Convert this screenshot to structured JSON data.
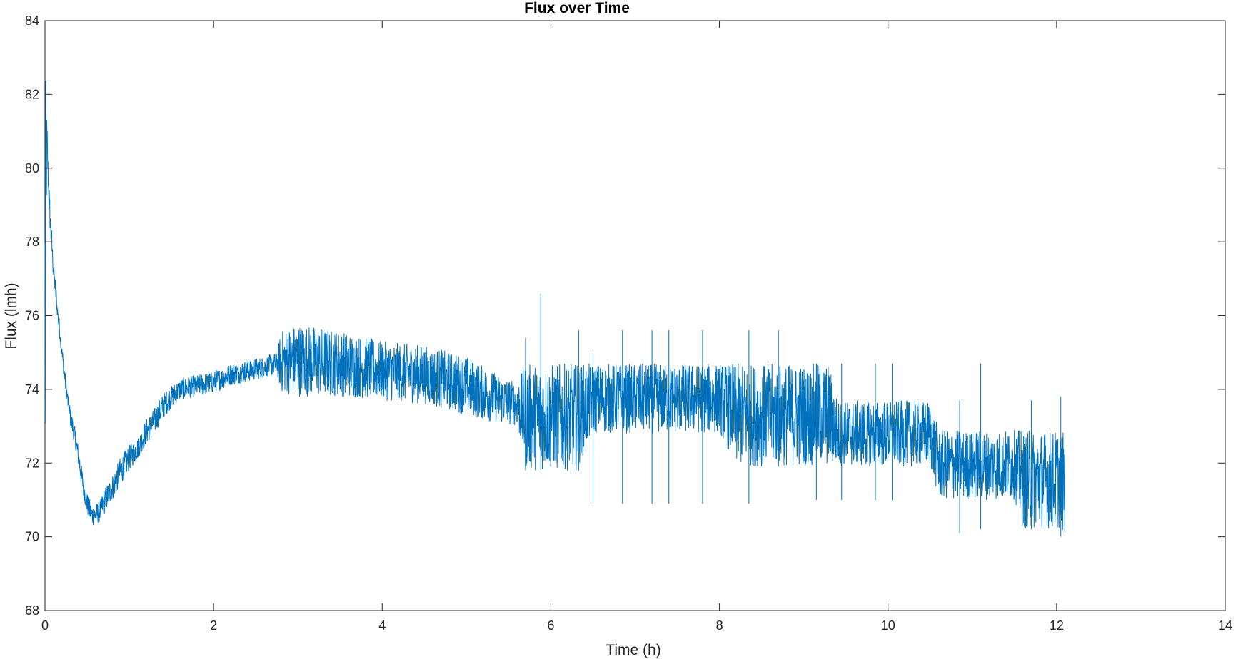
{
  "chart_data": {
    "type": "line",
    "title": "Flux over Time",
    "xlabel": "Time (h)",
    "ylabel": "Flux (lmh)",
    "xlim": [
      0,
      14
    ],
    "ylim": [
      68,
      84
    ],
    "xticks": [
      0,
      2,
      4,
      6,
      8,
      10,
      12,
      14
    ],
    "yticks": [
      68,
      70,
      72,
      74,
      76,
      78,
      80,
      82,
      84
    ],
    "xtick_labels": [
      "0",
      "2",
      "4",
      "6",
      "8",
      "10",
      "12",
      "14"
    ],
    "ytick_labels": [
      "68",
      "70",
      "72",
      "74",
      "76",
      "78",
      "80",
      "82",
      "84"
    ],
    "grid": false,
    "series": [
      {
        "color": "#0072BD",
        "envelope": [
          {
            "x": 0.0,
            "lo": 68.8,
            "hi": 82.8
          },
          {
            "x": 0.02,
            "lo": 80.0,
            "hi": 81.5
          },
          {
            "x": 0.05,
            "lo": 78.6,
            "hi": 79.4
          },
          {
            "x": 0.1,
            "lo": 76.9,
            "hi": 77.5
          },
          {
            "x": 0.15,
            "lo": 75.8,
            "hi": 76.3
          },
          {
            "x": 0.2,
            "lo": 74.8,
            "hi": 75.2
          },
          {
            "x": 0.25,
            "lo": 73.8,
            "hi": 74.2
          },
          {
            "x": 0.3,
            "lo": 73.0,
            "hi": 73.5
          },
          {
            "x": 0.35,
            "lo": 72.5,
            "hi": 73.0
          },
          {
            "x": 0.4,
            "lo": 71.8,
            "hi": 72.4
          },
          {
            "x": 0.45,
            "lo": 71.1,
            "hi": 71.7
          },
          {
            "x": 0.5,
            "lo": 70.6,
            "hi": 71.2
          },
          {
            "x": 0.55,
            "lo": 70.3,
            "hi": 70.9
          },
          {
            "x": 0.6,
            "lo": 70.3,
            "hi": 70.9
          },
          {
            "x": 0.65,
            "lo": 70.4,
            "hi": 71.0
          },
          {
            "x": 0.7,
            "lo": 70.6,
            "hi": 71.3
          },
          {
            "x": 0.8,
            "lo": 71.0,
            "hi": 71.7
          },
          {
            "x": 0.9,
            "lo": 71.4,
            "hi": 72.2
          },
          {
            "x": 1.0,
            "lo": 71.8,
            "hi": 72.5
          },
          {
            "x": 1.1,
            "lo": 72.1,
            "hi": 72.7
          },
          {
            "x": 1.2,
            "lo": 72.5,
            "hi": 73.2
          },
          {
            "x": 1.3,
            "lo": 72.8,
            "hi": 73.5
          },
          {
            "x": 1.4,
            "lo": 73.2,
            "hi": 73.9
          },
          {
            "x": 1.5,
            "lo": 73.5,
            "hi": 74.1
          },
          {
            "x": 1.6,
            "lo": 73.7,
            "hi": 74.3
          },
          {
            "x": 1.8,
            "lo": 73.8,
            "hi": 74.4
          },
          {
            "x": 2.0,
            "lo": 73.9,
            "hi": 74.5
          },
          {
            "x": 2.2,
            "lo": 74.1,
            "hi": 74.7
          },
          {
            "x": 2.4,
            "lo": 74.2,
            "hi": 74.8
          },
          {
            "x": 2.6,
            "lo": 74.3,
            "hi": 74.9
          },
          {
            "x": 2.75,
            "lo": 74.4,
            "hi": 75.0
          },
          {
            "x": 2.8,
            "lo": 73.9,
            "hi": 75.6
          },
          {
            "x": 3.0,
            "lo": 73.8,
            "hi": 75.8
          },
          {
            "x": 3.5,
            "lo": 73.8,
            "hi": 75.6
          },
          {
            "x": 4.0,
            "lo": 73.7,
            "hi": 75.3
          },
          {
            "x": 4.5,
            "lo": 73.6,
            "hi": 75.2
          },
          {
            "x": 5.0,
            "lo": 73.3,
            "hi": 74.9
          },
          {
            "x": 5.3,
            "lo": 73.1,
            "hi": 74.5
          },
          {
            "x": 5.6,
            "lo": 73.0,
            "hi": 74.2
          },
          {
            "x": 5.7,
            "lo": 71.8,
            "hi": 74.7
          },
          {
            "x": 6.0,
            "lo": 71.8,
            "hi": 74.7
          },
          {
            "x": 6.3,
            "lo": 71.8,
            "hi": 74.7
          },
          {
            "x": 6.5,
            "lo": 72.8,
            "hi": 74.7
          },
          {
            "x": 8.0,
            "lo": 72.8,
            "hi": 74.7
          },
          {
            "x": 8.2,
            "lo": 71.9,
            "hi": 74.7
          },
          {
            "x": 9.3,
            "lo": 71.9,
            "hi": 74.7
          },
          {
            "x": 9.4,
            "lo": 71.9,
            "hi": 73.7
          },
          {
            "x": 10.5,
            "lo": 71.9,
            "hi": 73.7
          },
          {
            "x": 10.6,
            "lo": 71.0,
            "hi": 72.9
          },
          {
            "x": 11.5,
            "lo": 71.0,
            "hi": 72.9
          },
          {
            "x": 11.6,
            "lo": 70.2,
            "hi": 72.9
          },
          {
            "x": 12.05,
            "lo": 70.2,
            "hi": 72.9
          },
          {
            "x": 12.1,
            "lo": 70.0,
            "hi": 72.8
          }
        ],
        "spikes": [
          {
            "x": 5.7,
            "lo": 71.8,
            "hi": 75.4
          },
          {
            "x": 5.88,
            "lo": 71.8,
            "hi": 76.6
          },
          {
            "x": 6.33,
            "lo": 71.8,
            "hi": 75.6
          },
          {
            "x": 6.5,
            "lo": 70.9,
            "hi": 75.0
          },
          {
            "x": 6.85,
            "lo": 70.9,
            "hi": 75.6
          },
          {
            "x": 7.2,
            "lo": 70.9,
            "hi": 75.6
          },
          {
            "x": 7.4,
            "lo": 70.9,
            "hi": 75.6
          },
          {
            "x": 7.8,
            "lo": 70.9,
            "hi": 75.6
          },
          {
            "x": 8.35,
            "lo": 70.9,
            "hi": 75.6
          },
          {
            "x": 8.7,
            "lo": 71.9,
            "hi": 75.6
          },
          {
            "x": 9.15,
            "lo": 71.0,
            "hi": 74.7
          },
          {
            "x": 9.45,
            "lo": 71.0,
            "hi": 74.7
          },
          {
            "x": 9.85,
            "lo": 71.0,
            "hi": 74.7
          },
          {
            "x": 10.05,
            "lo": 71.0,
            "hi": 74.7
          },
          {
            "x": 10.85,
            "lo": 70.1,
            "hi": 73.7
          },
          {
            "x": 11.1,
            "lo": 70.2,
            "hi": 74.7
          },
          {
            "x": 11.7,
            "lo": 70.2,
            "hi": 73.7
          },
          {
            "x": 12.05,
            "lo": 70.0,
            "hi": 73.8
          }
        ]
      }
    ]
  }
}
